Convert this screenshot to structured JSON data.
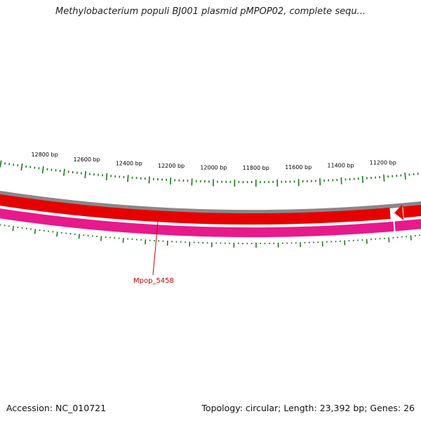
{
  "header": {
    "title": "Methylobacterium populi BJ001 plasmid pMPOP02, complete sequ..."
  },
  "footer": {
    "accession": "Accession: NC_010721",
    "summary": "Topology: circular; Length: 23,392 bp; Genes: 26"
  },
  "scale": {
    "tick_color": "#1a7a1a",
    "outer_labels": [
      {
        "bp": 12800,
        "text": "12800 bp"
      },
      {
        "bp": 12600,
        "text": "12600 bp"
      },
      {
        "bp": 12400,
        "text": "12400 bp"
      },
      {
        "bp": 12200,
        "text": "12200 bp"
      },
      {
        "bp": 12000,
        "text": "12000 bp"
      },
      {
        "bp": 11800,
        "text": "11800 bp"
      },
      {
        "bp": 11600,
        "text": "11600 bp"
      },
      {
        "bp": 11400,
        "text": "11400 bp"
      },
      {
        "bp": 11200,
        "text": "11200 bp"
      }
    ]
  },
  "tracks": {
    "backbone_color": "#888888",
    "forward_color": "#e60000",
    "reverse_color": "#e8198b"
  },
  "genes": [
    {
      "label": "Mpop_5458",
      "color": "#cc0000"
    }
  ]
}
